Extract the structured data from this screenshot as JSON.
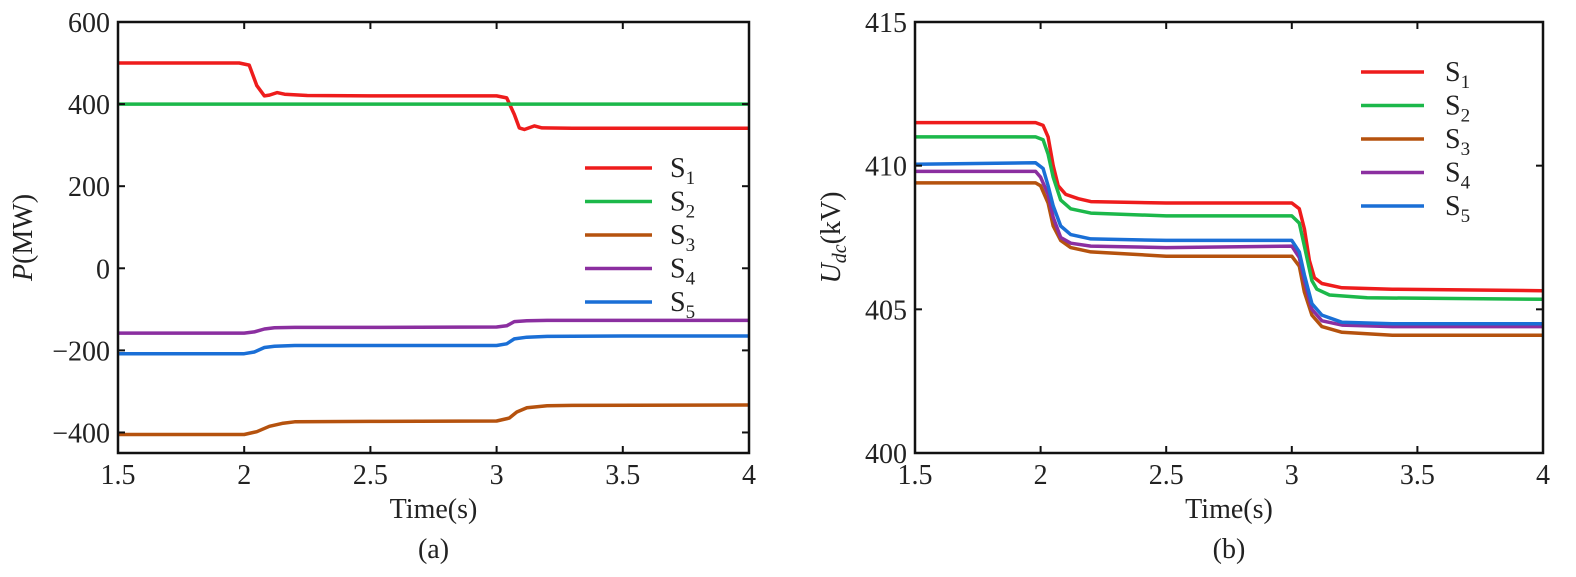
{
  "chart_data": [
    {
      "type": "line",
      "caption": "(a)",
      "xlabel": "Time(s)",
      "ylabel": {
        "symbol": "P",
        "unit": "(MW)"
      },
      "xlim": [
        1.5,
        4
      ],
      "ylim": [
        -450,
        600
      ],
      "xticks": [
        "1.5",
        "2",
        "2.5",
        "3",
        "3.5",
        "4"
      ],
      "yticks": [
        "600",
        "400",
        "200",
        "0",
        "−200",
        "−400"
      ],
      "ytick_values": [
        600,
        400,
        200,
        0,
        -200,
        -400
      ],
      "xtick_values": [
        1.5,
        2,
        2.5,
        3,
        3.5,
        4
      ],
      "legend_position": "right-middle",
      "series": [
        {
          "base": "S",
          "sub": "1",
          "color": "#ee1c1c",
          "points": [
            [
              1.5,
              500
            ],
            [
              1.98,
              500
            ],
            [
              2.02,
              495
            ],
            [
              2.05,
              445
            ],
            [
              2.08,
              420
            ],
            [
              2.1,
              422
            ],
            [
              2.13,
              428
            ],
            [
              2.16,
              424
            ],
            [
              2.25,
              421
            ],
            [
              2.5,
              420
            ],
            [
              3.0,
              420
            ],
            [
              3.04,
              415
            ],
            [
              3.07,
              375
            ],
            [
              3.09,
              342
            ],
            [
              3.11,
              338
            ],
            [
              3.15,
              347
            ],
            [
              3.18,
              342
            ],
            [
              3.3,
              341
            ],
            [
              4.0,
              341
            ]
          ]
        },
        {
          "base": "S",
          "sub": "2",
          "color": "#1cb84a",
          "points": [
            [
              1.5,
              400
            ],
            [
              4.0,
              400
            ]
          ]
        },
        {
          "base": "S",
          "sub": "3",
          "color": "#b5520e",
          "points": [
            [
              1.5,
              -405
            ],
            [
              2.0,
              -405
            ],
            [
              2.05,
              -398
            ],
            [
              2.1,
              -385
            ],
            [
              2.15,
              -378
            ],
            [
              2.2,
              -374
            ],
            [
              2.5,
              -373
            ],
            [
              3.0,
              -372
            ],
            [
              3.05,
              -365
            ],
            [
              3.08,
              -350
            ],
            [
              3.12,
              -340
            ],
            [
              3.2,
              -335
            ],
            [
              3.3,
              -334
            ],
            [
              4.0,
              -333
            ]
          ]
        },
        {
          "base": "S",
          "sub": "4",
          "color": "#8b2fa0",
          "points": [
            [
              1.5,
              -158
            ],
            [
              2.0,
              -158
            ],
            [
              2.04,
              -155
            ],
            [
              2.08,
              -148
            ],
            [
              2.12,
              -145
            ],
            [
              2.2,
              -144
            ],
            [
              2.5,
              -144
            ],
            [
              3.0,
              -143
            ],
            [
              3.04,
              -140
            ],
            [
              3.07,
              -130
            ],
            [
              3.12,
              -128
            ],
            [
              3.2,
              -127
            ],
            [
              4.0,
              -127
            ]
          ]
        },
        {
          "base": "S",
          "sub": "5",
          "color": "#1a6fd6",
          "points": [
            [
              1.5,
              -208
            ],
            [
              2.0,
              -208
            ],
            [
              2.04,
              -204
            ],
            [
              2.08,
              -193
            ],
            [
              2.12,
              -190
            ],
            [
              2.2,
              -188
            ],
            [
              2.5,
              -188
            ],
            [
              3.0,
              -188
            ],
            [
              3.04,
              -184
            ],
            [
              3.07,
              -172
            ],
            [
              3.12,
              -168
            ],
            [
              3.2,
              -166
            ],
            [
              3.5,
              -165
            ],
            [
              4.0,
              -165
            ]
          ]
        }
      ]
    },
    {
      "type": "line",
      "caption": "(b)",
      "xlabel": "Time(s)",
      "ylabel": {
        "symbol": "U",
        "subscript": "dc",
        "unit": "(kV)"
      },
      "xlim": [
        1.5,
        4
      ],
      "ylim": [
        400,
        415
      ],
      "xticks": [
        "1.5",
        "2",
        "2.5",
        "3",
        "3.5",
        "4"
      ],
      "yticks": [
        "415",
        "410",
        "405",
        "400"
      ],
      "ytick_values": [
        415,
        410,
        405,
        400
      ],
      "xtick_values": [
        1.5,
        2,
        2.5,
        3,
        3.5,
        4
      ],
      "legend_position": "top-right",
      "series": [
        {
          "base": "S",
          "sub": "1",
          "color": "#ee1c1c",
          "points": [
            [
              1.5,
              411.5
            ],
            [
              1.98,
              411.5
            ],
            [
              2.01,
              411.4
            ],
            [
              2.03,
              411.0
            ],
            [
              2.05,
              410.0
            ],
            [
              2.07,
              409.3
            ],
            [
              2.1,
              409.0
            ],
            [
              2.15,
              408.85
            ],
            [
              2.2,
              408.75
            ],
            [
              2.5,
              408.7
            ],
            [
              3.0,
              408.7
            ],
            [
              3.03,
              408.5
            ],
            [
              3.05,
              407.8
            ],
            [
              3.07,
              406.7
            ],
            [
              3.09,
              406.1
            ],
            [
              3.12,
              405.9
            ],
            [
              3.2,
              405.75
            ],
            [
              3.4,
              405.7
            ],
            [
              4.0,
              405.65
            ]
          ]
        },
        {
          "base": "S",
          "sub": "2",
          "color": "#1cb84a",
          "points": [
            [
              1.5,
              411.0
            ],
            [
              1.98,
              411.0
            ],
            [
              2.01,
              410.9
            ],
            [
              2.03,
              410.4
            ],
            [
              2.05,
              409.6
            ],
            [
              2.08,
              408.8
            ],
            [
              2.12,
              408.5
            ],
            [
              2.2,
              408.35
            ],
            [
              2.5,
              408.25
            ],
            [
              3.0,
              408.25
            ],
            [
              3.03,
              408.0
            ],
            [
              3.05,
              407.2
            ],
            [
              3.08,
              406.0
            ],
            [
              3.1,
              405.7
            ],
            [
              3.15,
              405.5
            ],
            [
              3.3,
              405.4
            ],
            [
              4.0,
              405.35
            ]
          ]
        },
        {
          "base": "S",
          "sub": "3",
          "color": "#b5520e",
          "points": [
            [
              1.5,
              409.4
            ],
            [
              1.98,
              409.4
            ],
            [
              2.0,
              409.3
            ],
            [
              2.03,
              408.7
            ],
            [
              2.05,
              407.9
            ],
            [
              2.08,
              407.4
            ],
            [
              2.12,
              407.15
            ],
            [
              2.2,
              407.0
            ],
            [
              2.5,
              406.85
            ],
            [
              3.0,
              406.85
            ],
            [
              3.03,
              406.5
            ],
            [
              3.05,
              405.6
            ],
            [
              3.08,
              404.8
            ],
            [
              3.12,
              404.4
            ],
            [
              3.2,
              404.2
            ],
            [
              3.4,
              404.1
            ],
            [
              4.0,
              404.1
            ]
          ]
        },
        {
          "base": "S",
          "sub": "4",
          "color": "#8b2fa0",
          "points": [
            [
              1.5,
              409.8
            ],
            [
              1.98,
              409.8
            ],
            [
              2.0,
              409.6
            ],
            [
              2.03,
              409.0
            ],
            [
              2.05,
              408.2
            ],
            [
              2.08,
              407.5
            ],
            [
              2.12,
              407.3
            ],
            [
              2.2,
              407.2
            ],
            [
              2.5,
              407.15
            ],
            [
              3.0,
              407.2
            ],
            [
              3.03,
              406.8
            ],
            [
              3.05,
              406.0
            ],
            [
              3.08,
              405.0
            ],
            [
              3.12,
              404.6
            ],
            [
              3.2,
              404.45
            ],
            [
              3.4,
              404.4
            ],
            [
              4.0,
              404.4
            ]
          ]
        },
        {
          "base": "S",
          "sub": "5",
          "color": "#1a6fd6",
          "points": [
            [
              1.5,
              410.05
            ],
            [
              1.98,
              410.1
            ],
            [
              2.01,
              409.9
            ],
            [
              2.03,
              409.3
            ],
            [
              2.05,
              408.6
            ],
            [
              2.08,
              407.9
            ],
            [
              2.12,
              407.6
            ],
            [
              2.2,
              407.45
            ],
            [
              2.5,
              407.4
            ],
            [
              3.0,
              407.4
            ],
            [
              3.03,
              407.0
            ],
            [
              3.05,
              406.2
            ],
            [
              3.08,
              405.2
            ],
            [
              3.12,
              404.8
            ],
            [
              3.2,
              404.55
            ],
            [
              3.4,
              404.5
            ],
            [
              4.0,
              404.5
            ]
          ]
        }
      ]
    }
  ]
}
